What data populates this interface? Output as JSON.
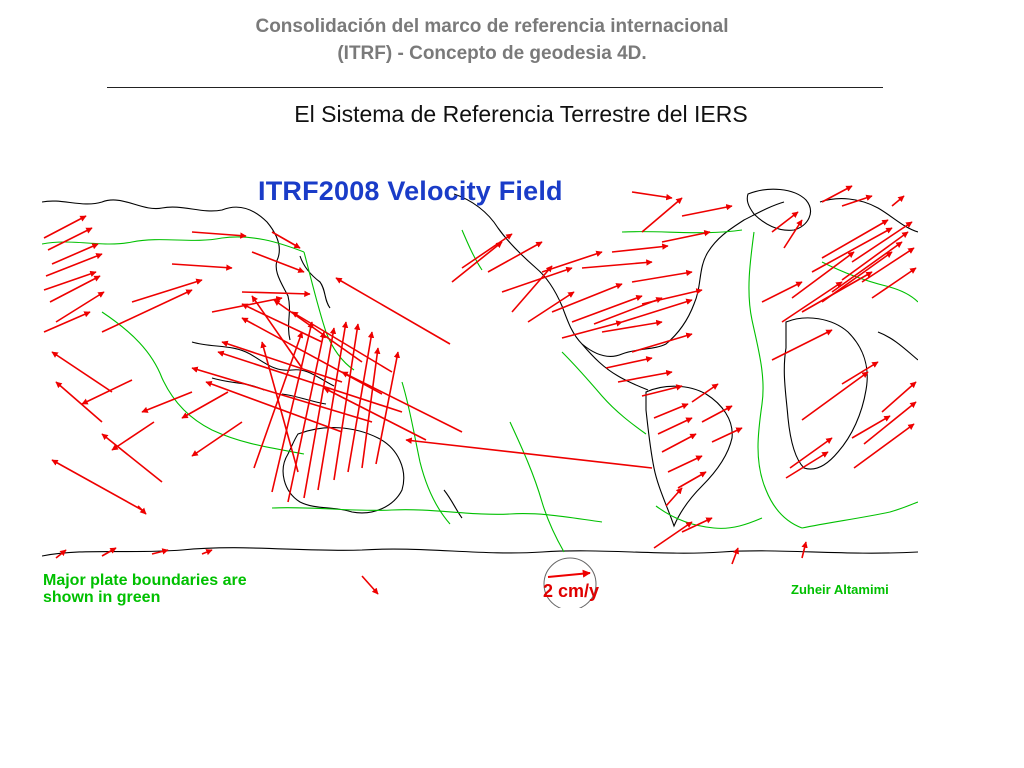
{
  "slide": {
    "title_line1": "Consolidación del marco de referencia internacional",
    "title_line2": "(ITRF) - Concepto de geodesia 4D.",
    "subtitle": "El Sistema de Referencia Terrestre del IERS"
  },
  "map": {
    "heading": "ITRF2008 Velocity Field",
    "legend_line1": "Major plate boundaries are",
    "legend_line2": "shown in green",
    "scale_label": "2 cm/y",
    "credit": "Zuheir Altamimi",
    "colors": {
      "coastline": "#000000",
      "plate_boundary": "#00c000",
      "velocity_vector": "#ee0000",
      "heading": "#1a3cc8"
    }
  }
}
